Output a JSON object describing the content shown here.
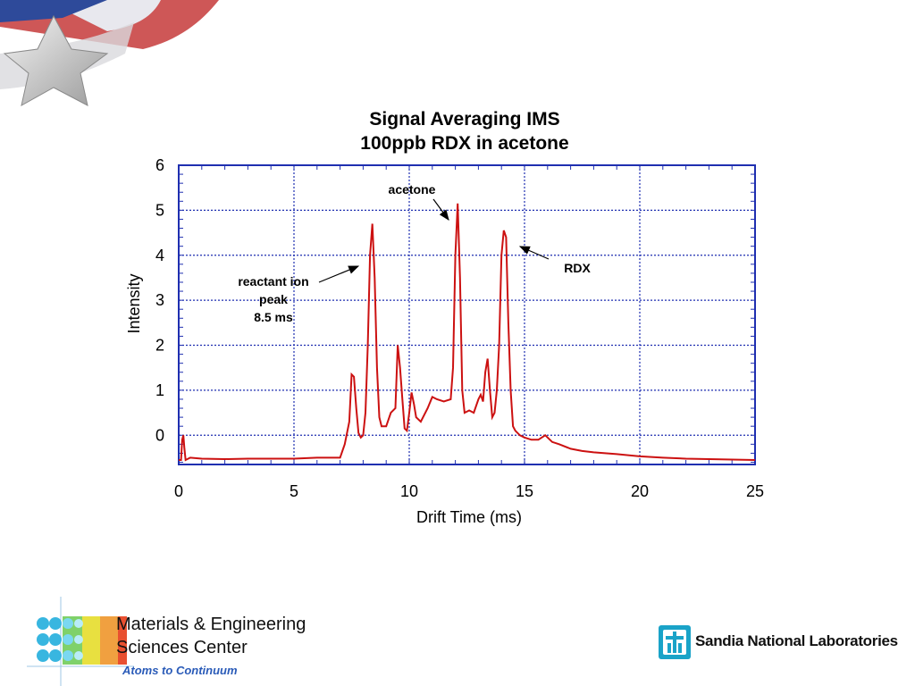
{
  "chart_data": {
    "type": "line",
    "title": "Signal Averaging IMS",
    "subtitle": "100ppb RDX in acetone",
    "xlabel": "Drift Time (ms)",
    "ylabel": "Intensity",
    "xlim": [
      0,
      25
    ],
    "ylim": [
      -0.65,
      6
    ],
    "xticks": [
      "0",
      "5",
      "10",
      "15",
      "20",
      "25"
    ],
    "yticks": [
      "0",
      "1",
      "2",
      "3",
      "4",
      "5",
      "6"
    ],
    "grid": true,
    "series_color": "#cc1111",
    "axis_color": "#1f2fb0",
    "x": [
      0,
      0.1,
      0.15,
      0.2,
      0.25,
      0.3,
      0.5,
      1,
      2,
      3,
      4,
      5,
      6,
      6.5,
      7,
      7.2,
      7.4,
      7.5,
      7.6,
      7.7,
      7.8,
      7.9,
      8.0,
      8.1,
      8.2,
      8.3,
      8.4,
      8.5,
      8.6,
      8.7,
      8.8,
      9.0,
      9.2,
      9.4,
      9.5,
      9.6,
      9.7,
      9.8,
      9.9,
      10.0,
      10.1,
      10.2,
      10.3,
      10.5,
      10.8,
      11.0,
      11.2,
      11.5,
      11.8,
      11.9,
      12.0,
      12.1,
      12.2,
      12.3,
      12.4,
      12.6,
      12.8,
      13.0,
      13.1,
      13.2,
      13.3,
      13.4,
      13.5,
      13.6,
      13.7,
      13.8,
      13.9,
      14.0,
      14.1,
      14.2,
      14.3,
      14.4,
      14.5,
      14.6,
      14.8,
      15.0,
      15.3,
      15.6,
      15.9,
      16.2,
      16.5,
      17.0,
      17.5,
      18,
      19,
      20,
      21,
      22,
      23,
      24,
      25
    ],
    "values": [
      -0.55,
      -0.55,
      -0.1,
      0.0,
      -0.3,
      -0.55,
      -0.5,
      -0.52,
      -0.53,
      -0.52,
      -0.52,
      -0.52,
      -0.5,
      -0.5,
      -0.5,
      -0.2,
      0.3,
      1.35,
      1.3,
      0.6,
      0.05,
      -0.05,
      0.0,
      0.5,
      2.0,
      4.0,
      4.7,
      3.5,
      1.5,
      0.4,
      0.2,
      0.2,
      0.5,
      0.6,
      2.0,
      1.5,
      0.8,
      0.15,
      0.1,
      0.5,
      0.95,
      0.7,
      0.4,
      0.3,
      0.6,
      0.85,
      0.8,
      0.75,
      0.8,
      1.5,
      4.0,
      5.15,
      3.5,
      1.0,
      0.5,
      0.55,
      0.5,
      0.8,
      0.9,
      0.75,
      1.4,
      1.7,
      1.0,
      0.4,
      0.5,
      1.0,
      2.0,
      4.0,
      4.55,
      4.4,
      2.5,
      1.0,
      0.2,
      0.1,
      0.0,
      -0.05,
      -0.1,
      -0.1,
      0.0,
      -0.15,
      -0.2,
      -0.3,
      -0.35,
      -0.38,
      -0.42,
      -0.47,
      -0.5,
      -0.52,
      -0.53,
      -0.54,
      -0.55
    ],
    "annotations": [
      {
        "lines": [
          "acetone"
        ],
        "x": 12.1,
        "y": 5.15
      },
      {
        "lines": [
          "RDX"
        ],
        "x": 14.1,
        "y": 4.55
      },
      {
        "lines": [
          "reactant ion",
          "peak",
          "8.5 ms"
        ],
        "x": 8.1,
        "y": 3.8
      }
    ]
  },
  "footer": {
    "line1": "Materials & Engineering",
    "line2": "Sciences Center",
    "tagline": "Atoms to Continuum",
    "org": "Sandia National Laboratories"
  },
  "icons": {
    "corner": "flag-star-graphic",
    "left_logo": "molecular-grid-logo",
    "right_logo": "sandia-thunderbird-logo"
  }
}
